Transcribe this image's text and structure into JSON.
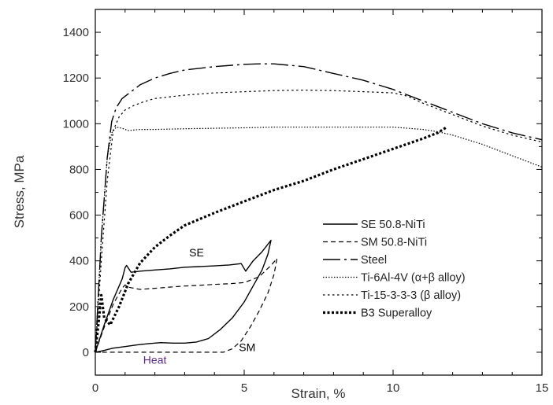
{
  "chart_data": {
    "type": "line",
    "xlabel": "Strain, %",
    "ylabel": "Stress, MPa",
    "xlim": [
      0,
      15
    ],
    "ylim": [
      -100,
      1500
    ],
    "xticks": [
      0,
      5,
      10,
      15
    ],
    "yticks": [
      0,
      200,
      400,
      600,
      800,
      1000,
      1200,
      1400
    ],
    "grid": false,
    "legend_position": "bottom-right",
    "series": [
      {
        "name": "SE 50.8-NiTi",
        "style": "solid",
        "color": "#000000",
        "x": [
          0,
          0.3,
          0.6,
          0.9,
          1.0,
          1.05,
          1.2,
          1.5,
          2.0,
          2.5,
          3.0,
          3.5,
          4.0,
          4.5,
          4.9,
          5.05,
          5.3,
          5.6,
          5.9,
          5.8,
          5.6,
          5.3,
          5.0,
          4.6,
          4.2,
          3.8,
          3.4,
          3.0,
          2.6,
          2.2,
          1.8,
          1.4,
          1.0,
          0.6,
          0.3,
          0
        ],
        "y": [
          0,
          120,
          230,
          320,
          370,
          380,
          350,
          355,
          360,
          365,
          372,
          375,
          378,
          382,
          388,
          355,
          400,
          440,
          490,
          430,
          360,
          290,
          220,
          150,
          100,
          60,
          45,
          40,
          40,
          42,
          38,
          32,
          25,
          18,
          8,
          0
        ]
      },
      {
        "name": "SM 50.8-NiTi",
        "style": "dashed",
        "color": "#000000",
        "x": [
          0,
          0.3,
          0.6,
          0.9,
          1.0,
          1.1,
          1.5,
          2.0,
          2.5,
          3.0,
          3.5,
          4.0,
          4.5,
          5.0,
          5.5,
          5.9,
          6.1,
          6.0,
          5.8,
          5.5,
          5.2,
          4.9,
          4.6,
          4.3,
          3.9,
          3.0,
          2.0,
          1.0,
          0.3,
          0
        ],
        "y": [
          0,
          110,
          210,
          280,
          295,
          285,
          275,
          280,
          285,
          290,
          293,
          297,
          300,
          305,
          330,
          380,
          410,
          340,
          260,
          180,
          110,
          50,
          15,
          0,
          0,
          0,
          0,
          0,
          0,
          0
        ]
      },
      {
        "name": "Steel",
        "style": "dashdot",
        "color": "#000000",
        "x": [
          0,
          0.2,
          0.4,
          0.55,
          0.7,
          0.9,
          1.2,
          1.5,
          2.0,
          2.5,
          3.0,
          4.0,
          5.0,
          5.5,
          6.0,
          7.0,
          8.0,
          9.0,
          10.0,
          11.0,
          12.0,
          13.0,
          14.0,
          15.0
        ],
        "y": [
          0,
          500,
          850,
          1010,
          1070,
          1110,
          1140,
          1170,
          1200,
          1220,
          1235,
          1250,
          1260,
          1262,
          1262,
          1250,
          1220,
          1190,
          1150,
          1100,
          1050,
          1000,
          960,
          930
        ]
      },
      {
        "name": "Ti-6Al-4V (α+β alloy)",
        "style": "dotted",
        "color": "#000000",
        "x": [
          0,
          0.2,
          0.4,
          0.55,
          0.7,
          0.9,
          1.1,
          1.5,
          2.0,
          3.0,
          4.0,
          5.0,
          6.0,
          7.0,
          8.0,
          9.0,
          10.0,
          10.5,
          11.0,
          11.5,
          12.0,
          13.0,
          14.0,
          15.0
        ],
        "y": [
          0,
          500,
          850,
          960,
          985,
          980,
          970,
          975,
          975,
          978,
          980,
          982,
          985,
          985,
          985,
          985,
          985,
          980,
          975,
          965,
          950,
          910,
          860,
          810
        ]
      },
      {
        "name": "Ti-15-3-3-3 (β alloy)",
        "style": "dotted-loose",
        "color": "#000000",
        "x": [
          0,
          0.2,
          0.4,
          0.6,
          0.8,
          1.0,
          1.3,
          1.6,
          2.0,
          3.0,
          4.0,
          5.0,
          6.0,
          7.0,
          8.0,
          9.0,
          10.0,
          10.5,
          11.0,
          12.0,
          13.0,
          14.0,
          15.0
        ],
        "y": [
          0,
          400,
          750,
          970,
          1030,
          1060,
          1080,
          1095,
          1110,
          1125,
          1135,
          1140,
          1145,
          1147,
          1145,
          1140,
          1135,
          1120,
          1090,
          1040,
          990,
          950,
          920
        ]
      },
      {
        "name": "B3 Superalloy",
        "style": "heavy-dotted",
        "color": "#000000",
        "x": [
          0,
          0.1,
          0.2,
          0.3,
          0.5,
          0.8,
          1.1,
          1.5,
          2.0,
          2.5,
          3.0,
          4.0,
          5.0,
          6.0,
          7.0,
          8.0,
          9.0,
          10.0,
          11.0,
          11.5,
          11.8
        ],
        "y": [
          0,
          120,
          250,
          150,
          120,
          200,
          300,
          390,
          460,
          510,
          555,
          610,
          660,
          710,
          750,
          800,
          845,
          890,
          935,
          960,
          985
        ]
      }
    ],
    "annotations": [
      {
        "text": "SE",
        "x": 3.4,
        "y": 420,
        "color": "#000000"
      },
      {
        "text": "SM",
        "x": 5.1,
        "y": 5,
        "color": "#000000"
      },
      {
        "text": "Heat",
        "x": 2.0,
        "y": -50,
        "color": "#5b2a86"
      }
    ]
  }
}
